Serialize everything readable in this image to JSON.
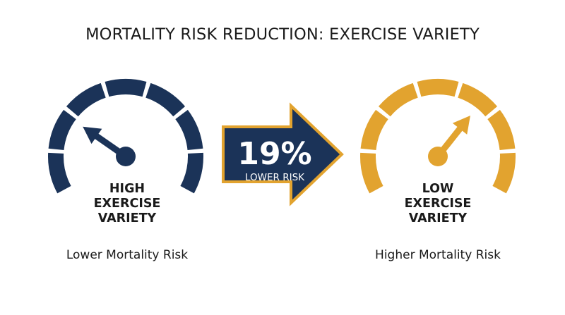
{
  "title": "MORTALITY RISK REDUCTION: EXERCISE VARIETY",
  "colors": {
    "navy": "#1b3358",
    "gold": "#e2a32f",
    "text": "#1a1a1a",
    "white": "#ffffff"
  },
  "gauges": [
    {
      "label_lines": [
        "HIGH",
        "EXERCISE",
        "VARIETY"
      ],
      "caption": "Lower Mortality Risk",
      "color": "#1b3358",
      "needle_fraction": 0.27
    },
    {
      "label_lines": [
        "LOW",
        "EXERCISE",
        "VARIETY"
      ],
      "caption": "Higher Mortality Risk",
      "color": "#e2a32f",
      "needle_fraction": 0.66
    }
  ],
  "arrow": {
    "value": "19%",
    "label": "LOWER RISK",
    "fill": "#1b3358",
    "border": "#e2a32f"
  }
}
